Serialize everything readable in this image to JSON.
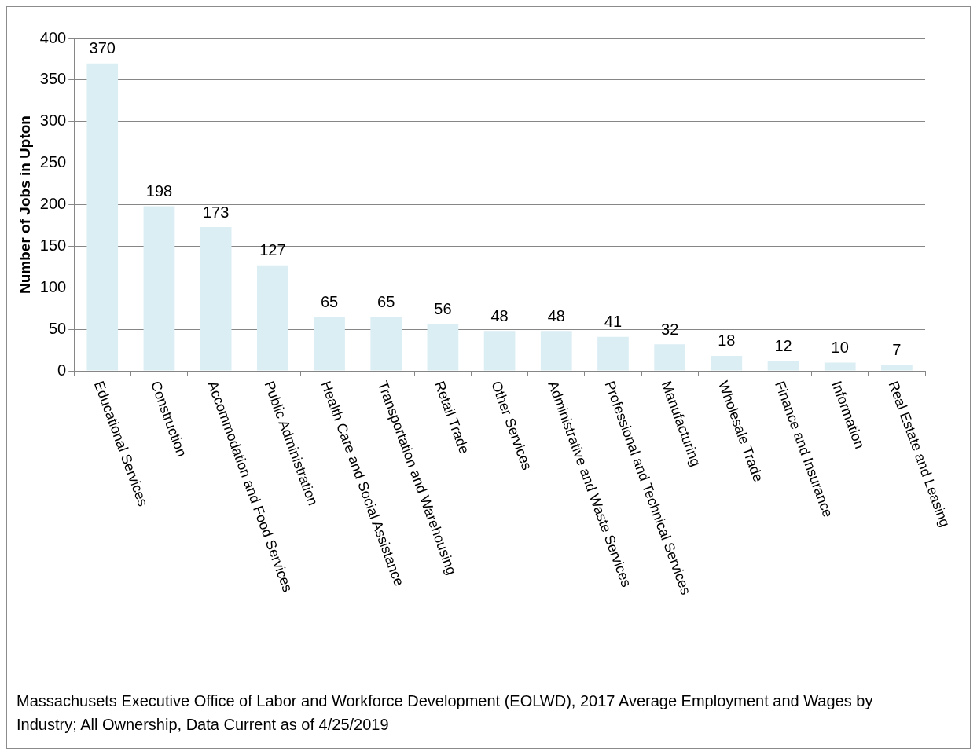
{
  "chart_data": {
    "type": "bar",
    "ylabel": "Number of Jobs in Upton",
    "categories": [
      "Educational Services",
      "Construction",
      "Accommodation and Food Services",
      "Public Administration",
      "Health Care and Social Assistance",
      "Transportation and Warehousing",
      "Retail Trade",
      "Other Services",
      "Administrative and Waste Services",
      "Professional and Technical Services",
      "Manufacturing",
      "Wholesale Trade",
      "Finance and Insurance",
      "Information",
      "Real Estate and Leasing"
    ],
    "values": [
      370,
      198,
      173,
      127,
      65,
      65,
      56,
      48,
      48,
      41,
      32,
      18,
      12,
      10,
      7
    ],
    "color": "#dbeef4",
    "ylim": [
      0,
      400
    ],
    "yticks": [
      0,
      50,
      100,
      150,
      200,
      250,
      300,
      350,
      400
    ],
    "grid": "y",
    "data_labels": true,
    "annotations": [
      "Massachusets Executive Office of Labor and Workforce Development (EOLWD), 2017 Average Employment and Wages by Industry; All Ownership, Data Current as of 4/25/2019"
    ]
  }
}
